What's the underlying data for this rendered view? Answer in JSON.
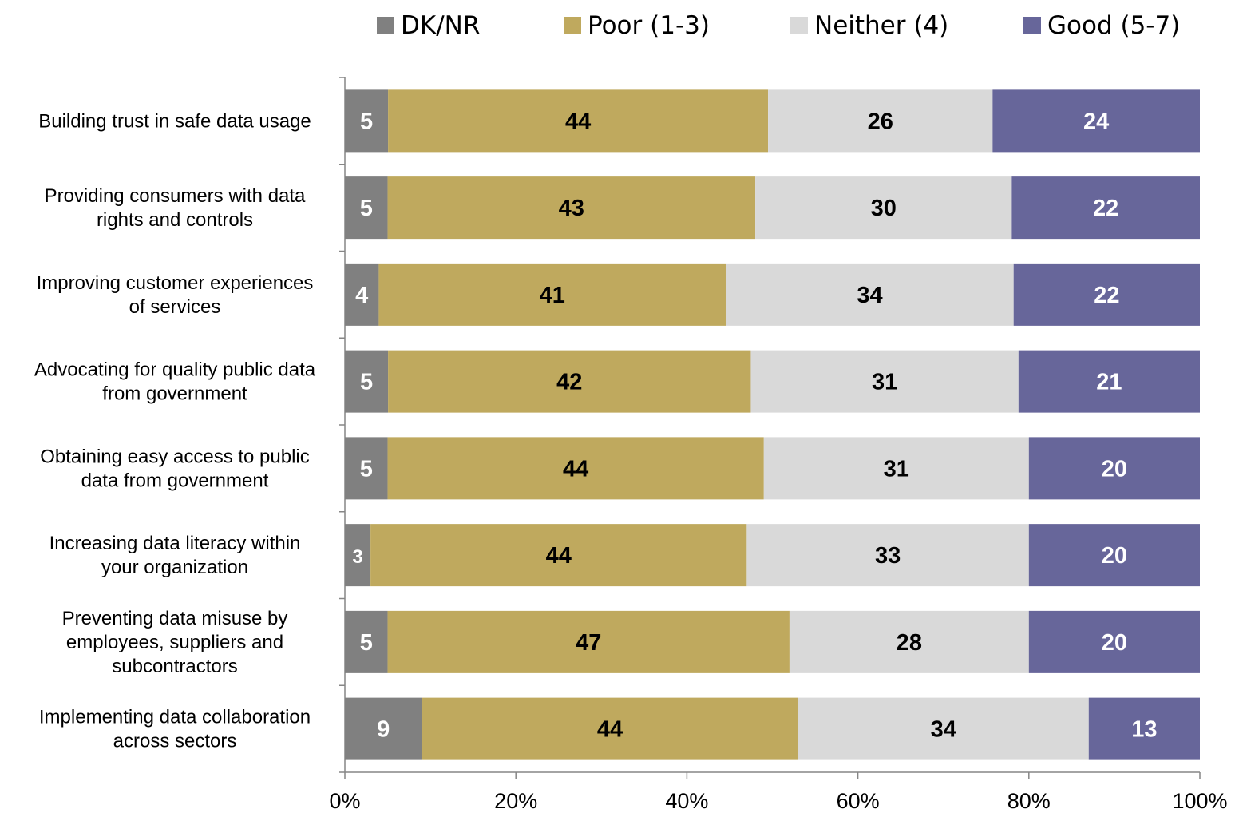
{
  "chart_data": {
    "type": "bar",
    "orientation": "horizontal",
    "stacked": "percent",
    "categories": [
      [
        "Building trust in safe data usage"
      ],
      [
        "Providing consumers with data",
        "rights and controls"
      ],
      [
        "Improving customer experiences",
        "of services"
      ],
      [
        "Advocating for quality public data",
        "from government"
      ],
      [
        "Obtaining easy access to public",
        "data from government"
      ],
      [
        "Increasing data literacy within",
        "your organization"
      ],
      [
        "Preventing data misuse by",
        "employees, suppliers and",
        "subcontractors"
      ],
      [
        "Implementing data collaboration",
        "across sectors"
      ]
    ],
    "series": [
      {
        "name": "DK/NR",
        "color": "#808080",
        "label_color": "#ffffff",
        "values": [
          5,
          5,
          4,
          5,
          5,
          3,
          5,
          9
        ]
      },
      {
        "name": "Poor (1-3)",
        "color": "#bfa95e",
        "label_color": "#000000",
        "values": [
          44,
          43,
          41,
          42,
          44,
          44,
          47,
          44
        ]
      },
      {
        "name": "Neither (4)",
        "color": "#d9d9d9",
        "label_color": "#000000",
        "values": [
          26,
          30,
          34,
          31,
          31,
          33,
          28,
          34
        ]
      },
      {
        "name": "Good (5-7)",
        "color": "#67669a",
        "label_color": "#ffffff",
        "values": [
          24,
          22,
          22,
          21,
          20,
          20,
          20,
          13
        ]
      }
    ],
    "xlim": [
      0,
      100
    ],
    "x_ticks": [
      "0%",
      "20%",
      "40%",
      "60%",
      "80%",
      "100%"
    ],
    "legend_position": "top",
    "grid": false
  }
}
